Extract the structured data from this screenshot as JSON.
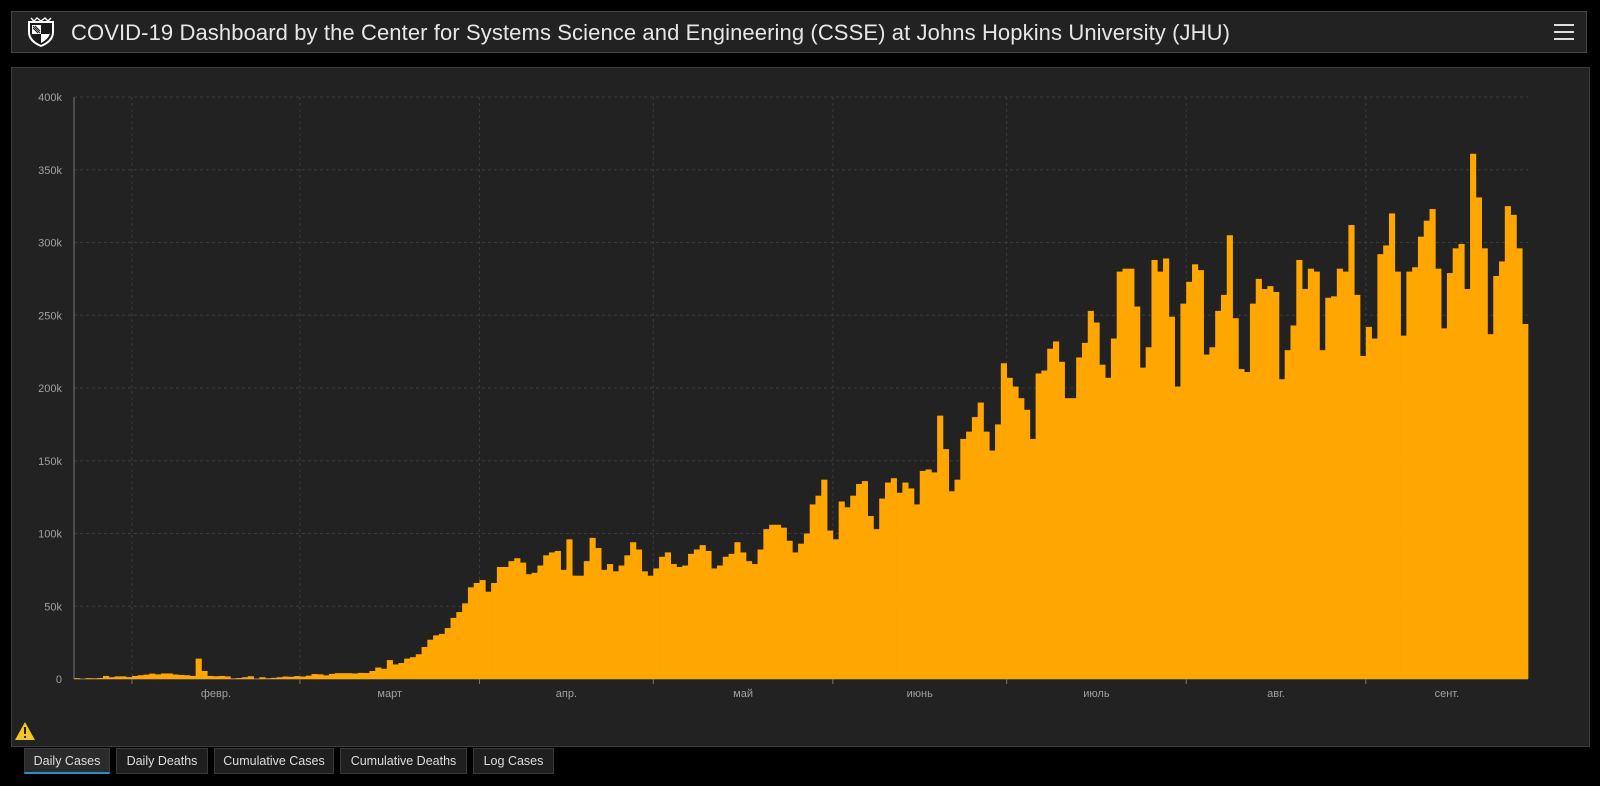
{
  "header": {
    "title": "COVID-19 Dashboard by the Center for Systems Science and Engineering (CSSE) at Johns Hopkins University (JHU)",
    "logo_icon": "jhu-shield-icon",
    "menu_icon": "hamburger-menu-icon"
  },
  "colors": {
    "bar": "#FFA700",
    "panel_bg": "#222222",
    "page_bg": "#000000",
    "grid": "#3c3c3c",
    "axis_text": "#a0a0a0",
    "tab_active_underline": "#2d8cc9",
    "warning": "#f3c623"
  },
  "warning_icon": "warning-triangle-icon",
  "tabs": [
    {
      "label": "Daily Cases",
      "active": true
    },
    {
      "label": "Daily Deaths",
      "active": false
    },
    {
      "label": "Cumulative Cases",
      "active": false
    },
    {
      "label": "Cumulative Deaths",
      "active": false
    },
    {
      "label": "Log Cases",
      "active": false
    }
  ],
  "chart_data": {
    "type": "bar",
    "title": "",
    "xlabel": "",
    "ylabel": "",
    "ylim": [
      0,
      400000
    ],
    "yticks": [
      0,
      50000,
      100000,
      150000,
      200000,
      250000,
      300000,
      350000,
      400000
    ],
    "ytick_labels": [
      "0",
      "50k",
      "100k",
      "150k",
      "200k",
      "250k",
      "300k",
      "350k",
      "400k"
    ],
    "x_start": "2020-01-22",
    "x_end": "2020-09-28",
    "xticks": [
      {
        "date": "2020-02-01",
        "label": "февр."
      },
      {
        "date": "2020-03-01",
        "label": "март"
      },
      {
        "date": "2020-04-01",
        "label": "апр."
      },
      {
        "date": "2020-05-01",
        "label": "май"
      },
      {
        "date": "2020-06-01",
        "label": "июнь"
      },
      {
        "date": "2020-07-01",
        "label": "июль"
      },
      {
        "date": "2020-08-01",
        "label": "авг."
      },
      {
        "date": "2020-09-01",
        "label": "сент."
      }
    ],
    "grid": true,
    "series": [
      {
        "color": "#FFA700",
        "values": [
          550,
          100,
          600,
          500,
          700,
          2100,
          1200,
          1800,
          1800,
          1300,
          2100,
          2600,
          3000,
          3700,
          3200,
          3800,
          3800,
          3100,
          2800,
          2600,
          2100,
          14000,
          5500,
          2100,
          1900,
          2100,
          1800,
          400,
          700,
          1200,
          1900,
          200,
          1200,
          500,
          800,
          1200,
          1700,
          1500,
          2000,
          1700,
          2300,
          3400,
          3200,
          2500,
          3500,
          4000,
          4000,
          4000,
          3800,
          4200,
          4100,
          5500,
          7900,
          7000,
          13000,
          10000,
          11000,
          14000,
          15000,
          17000,
          22000,
          27000,
          30000,
          31000,
          35000,
          42000,
          46000,
          52000,
          63000,
          66000,
          68000,
          60000,
          66000,
          77000,
          77000,
          81000,
          83000,
          80000,
          72000,
          73000,
          78000,
          85000,
          87000,
          88000,
          75000,
          96000,
          71000,
          71000,
          81000,
          97000,
          90000,
          75000,
          79000,
          74000,
          78000,
          85000,
          94000,
          89000,
          74000,
          71000,
          76000,
          84000,
          87000,
          79000,
          77000,
          78000,
          86000,
          89000,
          92000,
          88000,
          76000,
          78000,
          84000,
          86000,
          94000,
          87000,
          81000,
          79000,
          89000,
          103000,
          106000,
          106000,
          104000,
          95000,
          87000,
          93000,
          100000,
          120000,
          126000,
          137000,
          102000,
          96000,
          122000,
          118000,
          126000,
          134000,
          136000,
          112000,
          103000,
          124000,
          135000,
          138000,
          128000,
          135000,
          131000,
          120000,
          143000,
          144000,
          142000,
          181000,
          158000,
          129000,
          137000,
          165000,
          170000,
          180000,
          190000,
          170000,
          157000,
          175000,
          217000,
          207000,
          201000,
          193000,
          185000,
          165000,
          210000,
          212000,
          227000,
          232000,
          218000,
          193000,
          193000,
          221000,
          231000,
          253000,
          245000,
          216000,
          207000,
          234000,
          280000,
          282000,
          282000,
          256000,
          214000,
          228000,
          288000,
          280000,
          289000,
          249000,
          201000,
          258000,
          273000,
          285000,
          281000,
          223000,
          228000,
          253000,
          264000,
          305000,
          248000,
          213000,
          211000,
          258000,
          275000,
          268000,
          270000,
          266000,
          206000,
          226000,
          243000,
          288000,
          268000,
          282000,
          280000,
          226000,
          262000,
          263000,
          282000,
          280000,
          312000,
          264000,
          222000,
          242000,
          234000,
          292000,
          298000,
          320000,
          280000,
          236000,
          280000,
          283000,
          304000,
          315000,
          323000,
          282000,
          241000,
          279000,
          296000,
          299000,
          268000,
          361000,
          331000,
          296000,
          237000,
          277000,
          287000,
          325000,
          319000,
          296000,
          244000
        ]
      }
    ]
  }
}
